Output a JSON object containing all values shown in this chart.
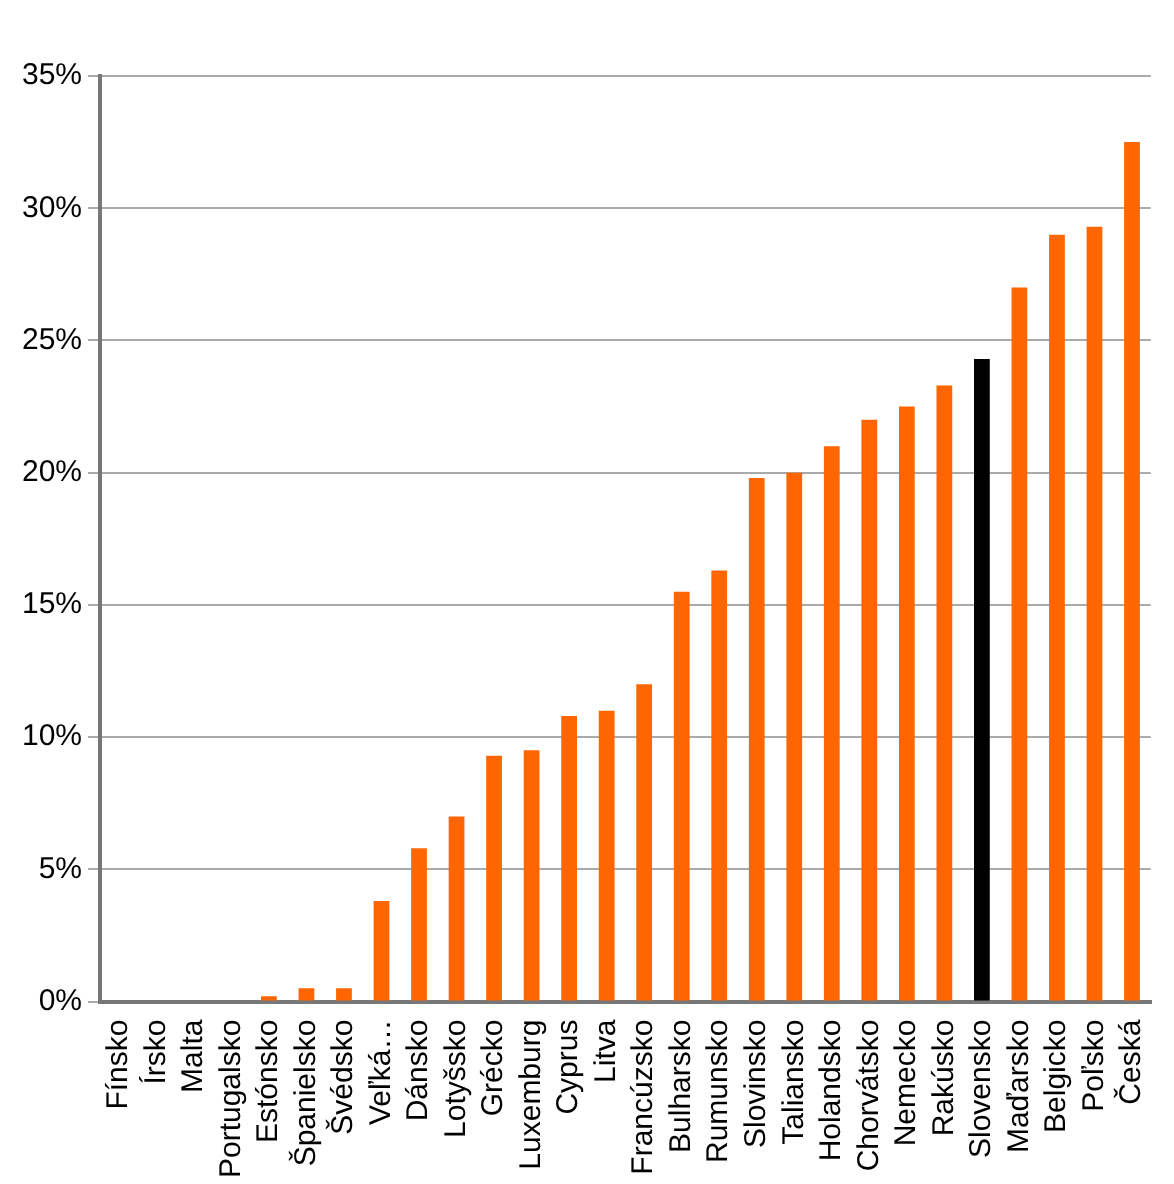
{
  "chart_data": {
    "type": "bar",
    "categories": [
      "Fínsko",
      "Írsko",
      "Malta",
      "Portugalsko",
      "Estónsko",
      "Španielsko",
      "Švédsko",
      "Veľká…",
      "Dánsko",
      "Lotyšsko",
      "Grécko",
      "Luxemburg",
      "Cyprus",
      "Litva",
      "Francúzsko",
      "Bulharsko",
      "Rumunsko",
      "Slovinsko",
      "Taliansko",
      "Holandsko",
      "Chorvátsko",
      "Nemecko",
      "Rakúsko",
      "Slovensko",
      "Maďarsko",
      "Belgicko",
      "Poľsko",
      "Česká"
    ],
    "values": [
      0,
      0,
      0,
      0,
      0.2,
      0.5,
      0.5,
      3.8,
      5.8,
      7.0,
      9.3,
      9.5,
      10.8,
      11.0,
      12.0,
      15.5,
      16.3,
      19.8,
      20.0,
      21.0,
      22.0,
      22.5,
      23.3,
      24.3,
      27.0,
      29.0,
      29.3,
      32.5
    ],
    "colors": [
      "#ff6600",
      "#ff6600",
      "#ff6600",
      "#ff6600",
      "#ff6600",
      "#ff6600",
      "#ff6600",
      "#ff6600",
      "#ff6600",
      "#ff6600",
      "#ff6600",
      "#ff6600",
      "#ff6600",
      "#ff6600",
      "#ff6600",
      "#ff6600",
      "#ff6600",
      "#ff6600",
      "#ff6600",
      "#ff6600",
      "#ff6600",
      "#ff6600",
      "#ff6600",
      "#000000",
      "#ff6600",
      "#ff6600",
      "#ff6600",
      "#ff6600"
    ],
    "ylim": [
      0,
      35
    ],
    "yticks": [
      {
        "value": 0,
        "label": "0%"
      },
      {
        "value": 5,
        "label": "5%"
      },
      {
        "value": 10,
        "label": "10%"
      },
      {
        "value": 15,
        "label": "15%"
      },
      {
        "value": 20,
        "label": "20%"
      },
      {
        "value": 25,
        "label": "25%"
      },
      {
        "value": 30,
        "label": "30%"
      },
      {
        "value": 35,
        "label": "35%"
      }
    ],
    "grid": "y",
    "legend": false
  }
}
